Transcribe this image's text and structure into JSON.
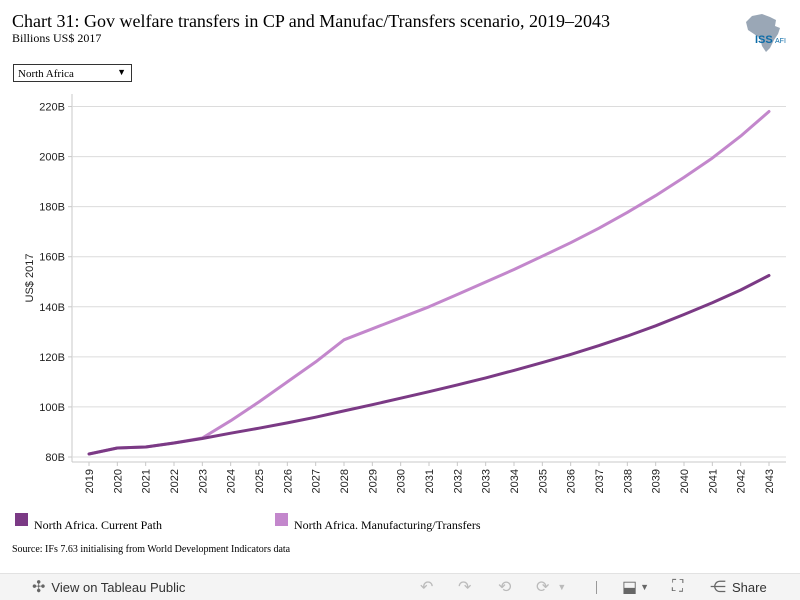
{
  "header": {
    "title": "Chart 31: Gov welfare transfers in CP and Manufac/Transfers scenario, 2019–2043",
    "subtitle": "Billions US$ 2017",
    "logo_text": "ISS",
    "logo_suffix": "AFI"
  },
  "filter": {
    "selected": "North Africa"
  },
  "chart_data": {
    "type": "line",
    "title": "Chart 31: Gov welfare transfers in CP and Manufac/Transfers scenario, 2019–2043",
    "ylabel": "US$ 2017",
    "xlabel": "",
    "ylim": [
      78,
      225
    ],
    "yticks": [
      80,
      100,
      120,
      140,
      160,
      180,
      200,
      220
    ],
    "ytick_labels": [
      "80B",
      "100B",
      "120B",
      "140B",
      "160B",
      "180B",
      "200B",
      "220B"
    ],
    "x": [
      2019,
      2020,
      2021,
      2022,
      2023,
      2024,
      2025,
      2026,
      2027,
      2028,
      2029,
      2030,
      2031,
      2032,
      2033,
      2034,
      2035,
      2036,
      2037,
      2038,
      2039,
      2040,
      2041,
      2042,
      2043
    ],
    "series": [
      {
        "name": "North Africa. Current Path",
        "color": "#7b3a85",
        "values": [
          81.2,
          83.6,
          84.0,
          85.6,
          87.4,
          89.5,
          91.5,
          93.6,
          95.9,
          98.4,
          100.9,
          103.5,
          106.1,
          108.8,
          111.6,
          114.6,
          117.7,
          121.0,
          124.5,
          128.3,
          132.4,
          136.9,
          141.6,
          146.7,
          152.5
        ]
      },
      {
        "name": "North Africa. Manufacturing/Transfers",
        "color": "#c387cc",
        "values": [
          81.2,
          83.6,
          84.0,
          85.6,
          87.6,
          94.5,
          102.0,
          110.0,
          118.0,
          126.8,
          131.2,
          135.6,
          140.0,
          144.9,
          149.9,
          154.9,
          160.2,
          165.6,
          171.4,
          177.7,
          184.4,
          191.7,
          199.4,
          208.2,
          218.0
        ]
      }
    ],
    "legend": "bottom",
    "grid": true
  },
  "legend": [
    {
      "label": "North Africa. Current Path",
      "color": "#7b3a85"
    },
    {
      "label": "North Africa. Manufacturing/Transfers",
      "color": "#c387cc"
    }
  ],
  "source": "Source: IFs 7.63 initialising from World Development Indicators data",
  "toolbar": {
    "view_label": "View on Tableau Public",
    "share_label": "Share",
    "icons": [
      "tableau-icon",
      "undo-icon",
      "redo-icon",
      "revert-icon",
      "refresh-icon",
      "download-icon",
      "fullscreen-icon",
      "share-icon"
    ]
  }
}
